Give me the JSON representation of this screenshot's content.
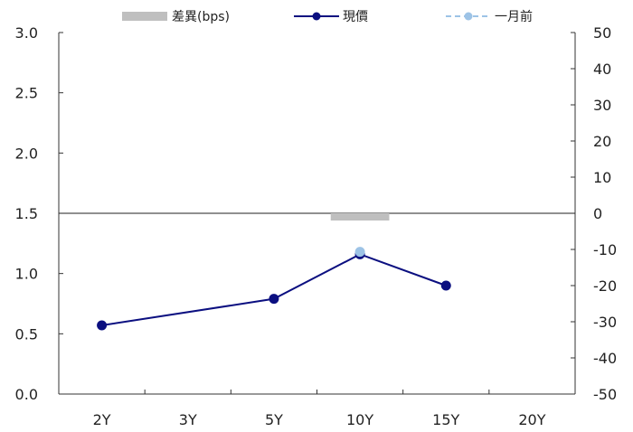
{
  "chart_data": {
    "type": "bar+line",
    "categories": [
      "2Y",
      "3Y",
      "5Y",
      "10Y",
      "15Y",
      "20Y"
    ],
    "left_axis": {
      "min": 0,
      "max": 3.0,
      "ticks": [
        "0.0",
        "0.5",
        "1.0",
        "1.5",
        "2.0",
        "2.5",
        "3.0"
      ]
    },
    "right_axis": {
      "min": -50,
      "max": 50,
      "ticks": [
        "-50",
        "-40",
        "-30",
        "-20",
        "-10",
        "0",
        "10",
        "20",
        "30",
        "40",
        "50"
      ]
    },
    "series": [
      {
        "name": "差異(bps)",
        "kind": "bar",
        "axis": "right",
        "color": "#bfbfbf",
        "values": [
          null,
          null,
          null,
          -2,
          null,
          null
        ]
      },
      {
        "name": "現價",
        "kind": "line",
        "axis": "left",
        "color": "#0b0f80",
        "values": [
          0.57,
          null,
          0.79,
          1.16,
          0.9,
          null
        ]
      },
      {
        "name": "一月前",
        "kind": "line-dashed",
        "axis": "left",
        "color": "#9dc3e6",
        "values": [
          null,
          null,
          null,
          1.18,
          null,
          null
        ]
      }
    ],
    "zero_line": 0,
    "legend_position": "top-center",
    "grid": false
  }
}
